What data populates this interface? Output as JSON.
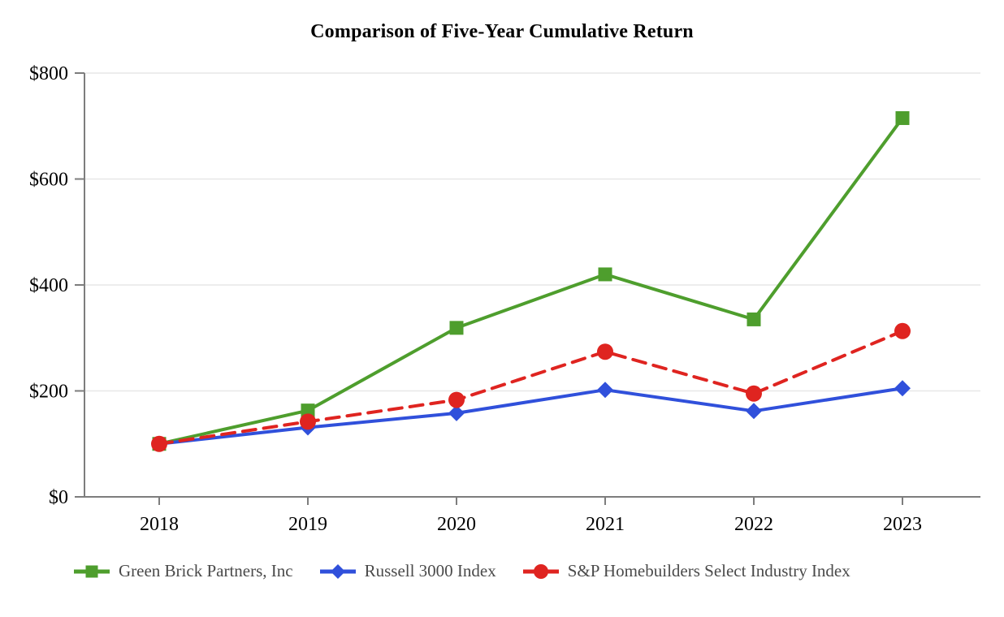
{
  "page": {
    "background": "#ffffff"
  },
  "chart_data": {
    "type": "line",
    "title": "Comparison of Five-Year Cumulative Return",
    "categories": [
      "2018",
      "2019",
      "2020",
      "2021",
      "2022",
      "2023"
    ],
    "series": [
      {
        "name": "Green Brick Partners, Inc",
        "color": "#4e9e2d",
        "marker": "square",
        "line_style": "solid",
        "values": [
          100,
          163,
          319,
          420,
          335,
          715
        ]
      },
      {
        "name": "Russell 3000 Index",
        "color": "#3050db",
        "marker": "diamond",
        "line_style": "solid",
        "values": [
          100,
          131,
          158,
          202,
          162,
          205
        ]
      },
      {
        "name": "S&P Homebuilders Select Industry Index",
        "color": "#df2420",
        "marker": "circle",
        "line_style": "dashed",
        "values": [
          100,
          142,
          183,
          274,
          195,
          313
        ]
      }
    ],
    "xlabel": "",
    "ylabel": "",
    "ylim": [
      0,
      800
    ],
    "y_tick_values": [
      0,
      200,
      400,
      600,
      800
    ],
    "y_tick_labels": [
      "$0",
      "$200",
      "$400",
      "$600",
      "$800"
    ],
    "grid": "horizontal",
    "legend_position": "bottom",
    "colors": {
      "axis": "#7d7d7d",
      "gridline": "#e7e7e7",
      "axis_label_text": "#000000",
      "legend_text": "#4a4a4a",
      "title_text": "#000000"
    }
  }
}
